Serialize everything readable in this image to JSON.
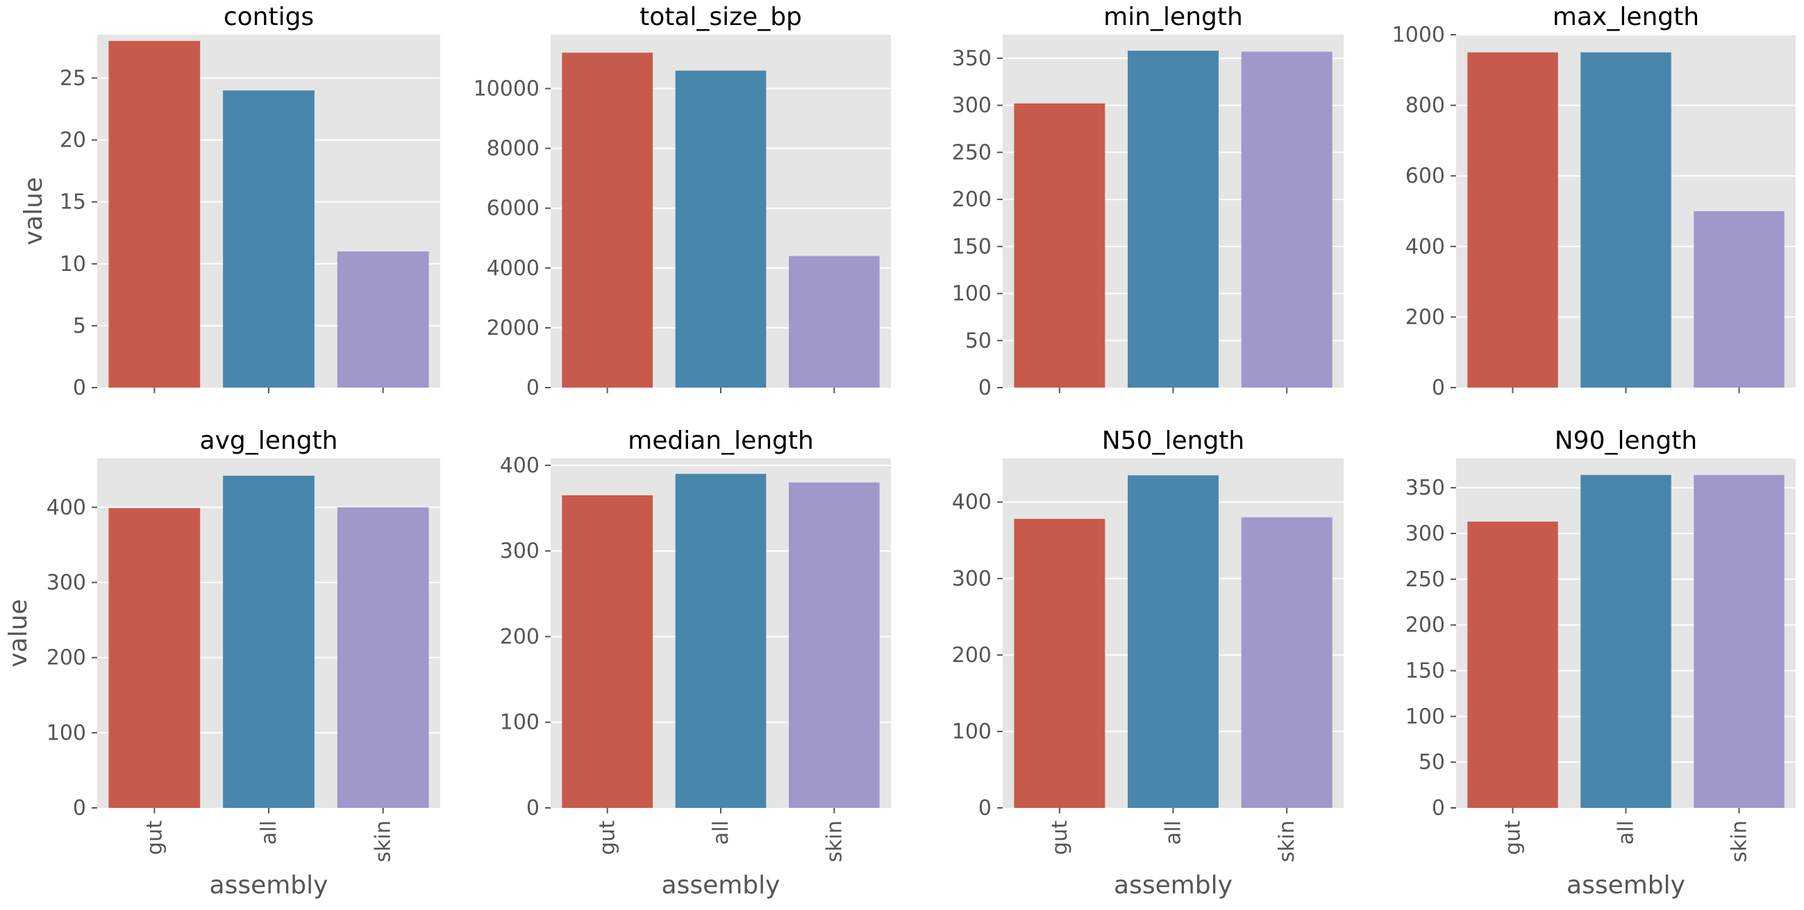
{
  "chart_data": {
    "type": "bar",
    "categories": [
      "gut",
      "all",
      "skin"
    ],
    "xlabel": "assembly",
    "ylabel": "value",
    "colors": [
      "#c85a4c",
      "#4886ab",
      "#9e98cb"
    ],
    "grid": true,
    "panels": [
      {
        "title": "contigs",
        "values": [
          28,
          24,
          11
        ],
        "ylim": [
          0,
          28.5
        ],
        "yticks": [
          "0",
          "5",
          "10",
          "15",
          "20",
          "25"
        ]
      },
      {
        "title": "total_size_bp",
        "values": [
          11200,
          10600,
          4400
        ],
        "ylim": [
          0,
          11800
        ],
        "yticks": [
          "0",
          "2000",
          "4000",
          "6000",
          "8000",
          "10000"
        ]
      },
      {
        "title": "min_length",
        "values": [
          302,
          358,
          357
        ],
        "ylim": [
          0,
          375
        ],
        "yticks": [
          "0",
          "50",
          "100",
          "150",
          "200",
          "250",
          "300",
          "350"
        ]
      },
      {
        "title": "max_length",
        "values": [
          950,
          950,
          500
        ],
        "ylim": [
          0,
          1000
        ],
        "yticks": [
          "0",
          "200",
          "400",
          "600",
          "800",
          "1000"
        ]
      },
      {
        "title": "avg_length",
        "values": [
          399,
          442,
          400
        ],
        "ylim": [
          0,
          465
        ],
        "yticks": [
          "0",
          "100",
          "200",
          "300",
          "400"
        ]
      },
      {
        "title": "median_length",
        "values": [
          365,
          390,
          380
        ],
        "ylim": [
          0,
          408
        ],
        "yticks": [
          "0",
          "100",
          "200",
          "300",
          "400"
        ]
      },
      {
        "title": "N50_length",
        "values": [
          378,
          435,
          380
        ],
        "ylim": [
          0,
          457
        ],
        "yticks": [
          "0",
          "100",
          "200",
          "300",
          "400"
        ]
      },
      {
        "title": "N90_length",
        "values": [
          313,
          364,
          364
        ],
        "ylim": [
          0,
          382
        ],
        "yticks": [
          "0",
          "50",
          "100",
          "150",
          "200",
          "250",
          "300",
          "350"
        ]
      }
    ]
  }
}
